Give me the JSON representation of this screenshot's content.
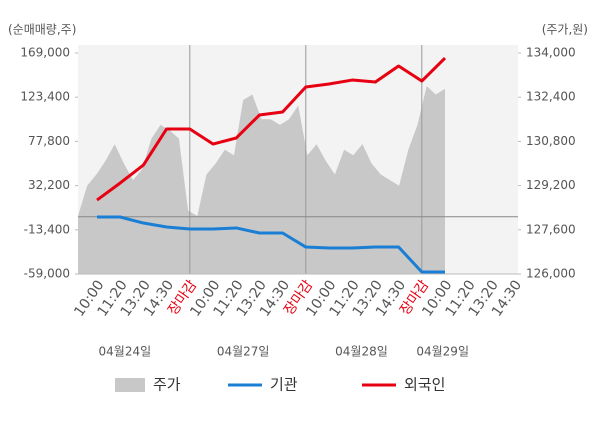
{
  "chart_data": {
    "type": "combo",
    "left_unit": "(순매매량,주)",
    "right_unit": "(주가,원)",
    "categories": [
      "10:00",
      "11:20",
      "13:20",
      "14:30",
      "장마감",
      "10:00",
      "11:20",
      "13:20",
      "14:30",
      "장마감",
      "10:00",
      "11:20",
      "13:20",
      "14:30",
      "장마감",
      "10:00",
      "11:20",
      "13:20",
      "14:30"
    ],
    "session_breaks": [
      4,
      9,
      14
    ],
    "break_label_color": "#e60012",
    "dates": [
      "04월24일",
      "04월27일",
      "04월28일",
      "04월29일"
    ],
    "ylim": [
      -59000,
      169000
    ],
    "yticks": [
      {
        "value": -59000,
        "label": "-59,000"
      },
      {
        "value": -13400,
        "label": "-13,400"
      },
      {
        "value": 32200,
        "label": "32,200"
      },
      {
        "value": 77800,
        "label": "77,800"
      },
      {
        "value": 123400,
        "label": "123,400"
      },
      {
        "value": 169000,
        "label": "169,000"
      }
    ],
    "y2lim": [
      126000,
      134000
    ],
    "y2ticks": [
      {
        "value": 126000,
        "label": "126,000"
      },
      {
        "value": 127600,
        "label": "127,600"
      },
      {
        "value": 129200,
        "label": "129,200"
      },
      {
        "value": 130800,
        "label": "130,800"
      },
      {
        "value": 132400,
        "label": "132,400"
      },
      {
        "value": 134000,
        "label": "134,000"
      }
    ],
    "price": {
      "name": "주가",
      "color": "#c8c8c8",
      "axis": "y2",
      "values": [
        128100,
        129200,
        129600,
        130100,
        130700,
        130000,
        129400,
        129800,
        130900,
        131400,
        131200,
        130900,
        128300,
        128100,
        129600,
        130000,
        130500,
        130300,
        132300,
        132500,
        131600,
        131600,
        131400,
        131600,
        132100,
        130300,
        130700,
        130100,
        129600,
        130500,
        130300,
        130700,
        130000,
        129600,
        129400,
        129200,
        130500,
        131400,
        132800,
        132500,
        132700
      ]
    },
    "series": [
      {
        "name": "기관",
        "color": "#1a7fd4",
        "values": [
          -200,
          -200,
          -6400,
          -10500,
          -12600,
          -12600,
          -11500,
          -16700,
          -16700,
          -31200,
          -32200,
          -32200,
          -31200,
          -31200,
          -56900,
          -56900,
          null,
          null,
          null
        ]
      },
      {
        "name": "외국인",
        "color": "#e60012",
        "values": [
          17300,
          34900,
          53400,
          90600,
          90600,
          75100,
          81300,
          105000,
          108100,
          133900,
          137000,
          141100,
          139100,
          155600,
          140100,
          163800,
          null,
          null,
          null
        ]
      }
    ]
  }
}
